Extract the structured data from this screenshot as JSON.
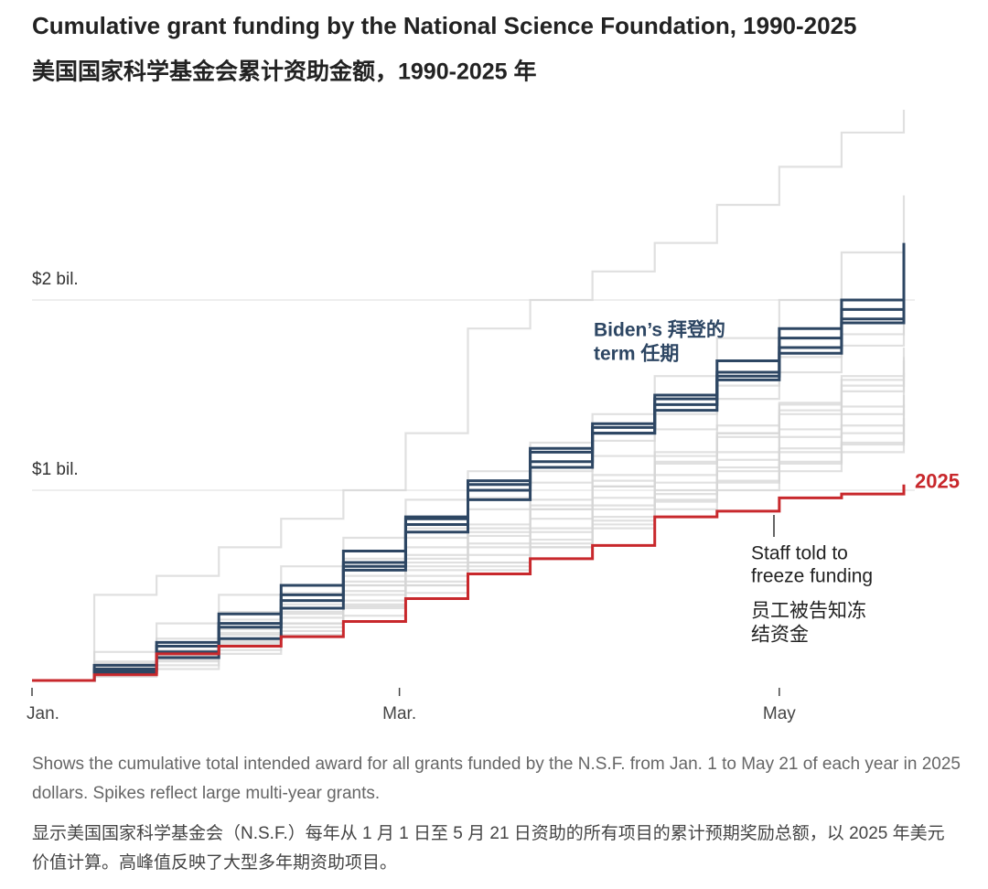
{
  "chart_data": {
    "type": "line",
    "title": "Cumulative grant funding by the National Science Foundation, 1990-2025",
    "subtitle": "美国国家科学基金会累计资助金额，1990-2025 年",
    "x": [
      0,
      10,
      20,
      30,
      40,
      50,
      60,
      70,
      80,
      90,
      100,
      110,
      120,
      130,
      140
    ],
    "xlim": [
      0,
      140
    ],
    "xticks": [
      {
        "value": 0,
        "label": "Jan."
      },
      {
        "value": 59,
        "label": "Mar."
      },
      {
        "value": 120,
        "label": "May"
      }
    ],
    "ylim": [
      0,
      3.0
    ],
    "yticks": [
      {
        "value": 1,
        "label": "$1 bil."
      },
      {
        "value": 2,
        "label": "$2 bil."
      }
    ],
    "grid": true,
    "series": [
      {
        "color": "#d6d6d6",
        "values": [
          0,
          0.05,
          0.12,
          0.22,
          0.3,
          0.4,
          0.52,
          0.62,
          0.72,
          0.84,
          0.95,
          1.05,
          1.15,
          1.25,
          1.38
        ]
      },
      {
        "color": "#d6d6d6",
        "values": [
          0,
          0.06,
          0.15,
          0.25,
          0.36,
          0.47,
          0.6,
          0.72,
          0.85,
          0.96,
          1.08,
          1.2,
          1.32,
          1.44,
          1.58
        ]
      },
      {
        "color": "#d6d6d6",
        "values": [
          0,
          0.04,
          0.1,
          0.2,
          0.33,
          0.45,
          0.58,
          0.7,
          0.8,
          0.92,
          1.04,
          1.16,
          1.28,
          1.4,
          1.5
        ]
      },
      {
        "color": "#d6d6d6",
        "values": [
          0,
          0.08,
          0.2,
          0.3,
          0.42,
          0.55,
          0.7,
          0.82,
          0.95,
          1.08,
          1.2,
          1.34,
          1.46,
          1.6,
          1.75
        ]
      },
      {
        "color": "#d6d6d6",
        "values": [
          0,
          0.03,
          0.08,
          0.16,
          0.26,
          0.38,
          0.5,
          0.6,
          0.7,
          0.8,
          0.9,
          1.0,
          1.1,
          1.2,
          1.3
        ]
      },
      {
        "color": "#d6d6d6",
        "values": [
          0,
          0.1,
          0.22,
          0.36,
          0.5,
          0.64,
          0.8,
          0.96,
          1.1,
          1.26,
          1.4,
          1.55,
          1.7,
          1.82,
          1.95
        ]
      },
      {
        "color": "#d6d6d6",
        "values": [
          0,
          0.05,
          0.14,
          0.24,
          0.35,
          0.5,
          0.62,
          0.76,
          0.9,
          1.02,
          1.15,
          1.3,
          1.42,
          1.55,
          1.68
        ]
      },
      {
        "color": "#d6d6d6",
        "values": [
          0,
          0.06,
          0.13,
          0.21,
          0.3,
          0.42,
          0.55,
          0.66,
          0.78,
          0.9,
          1.0,
          1.12,
          1.22,
          1.34,
          1.45
        ]
      },
      {
        "color": "#d6d6d6",
        "values": [
          0,
          0.07,
          0.18,
          0.28,
          0.4,
          0.52,
          0.66,
          0.8,
          0.92,
          1.05,
          1.18,
          1.3,
          1.45,
          1.58,
          1.7
        ]
      },
      {
        "color": "#d6d6d6",
        "values": [
          0,
          0.04,
          0.11,
          0.19,
          0.28,
          0.39,
          0.5,
          0.62,
          0.74,
          0.86,
          0.98,
          1.1,
          1.2,
          1.3,
          1.42
        ]
      },
      {
        "color": "#d6d6d6",
        "values": [
          0,
          0.02,
          0.06,
          0.14,
          0.24,
          0.34,
          0.46,
          0.58,
          0.7,
          0.82,
          0.94,
          1.04,
          1.14,
          1.24,
          1.35
        ]
      },
      {
        "color": "#d6d6d6",
        "values": [
          0,
          0.06,
          0.16,
          0.27,
          0.38,
          0.5,
          0.64,
          0.78,
          0.9,
          1.02,
          1.14,
          1.28,
          1.4,
          1.52,
          1.62
        ]
      },
      {
        "color": "#d6d6d6",
        "values": [
          0,
          0.45,
          0.55,
          0.7,
          0.85,
          1.0,
          1.3,
          1.85,
          2.0,
          2.15,
          2.3,
          2.5,
          2.7,
          2.88,
          3.0
        ]
      },
      {
        "color": "#d6d6d6",
        "values": [
          0,
          0.15,
          0.3,
          0.45,
          0.6,
          0.75,
          0.95,
          1.1,
          1.25,
          1.4,
          1.6,
          1.8,
          2.0,
          2.25,
          2.55
        ]
      },
      {
        "color": "#d6d6d6",
        "values": [
          0,
          0.09,
          0.2,
          0.32,
          0.46,
          0.6,
          0.75,
          0.9,
          1.04,
          1.18,
          1.32,
          1.48,
          1.62,
          1.76,
          1.88
        ]
      },
      {
        "color": "#2d4663",
        "values": [
          0,
          0.08,
          0.2,
          0.35,
          0.5,
          0.68,
          0.86,
          1.05,
          1.22,
          1.35,
          1.5,
          1.68,
          1.85,
          2.0,
          2.3
        ]
      },
      {
        "color": "#2d4663",
        "values": [
          0,
          0.06,
          0.18,
          0.3,
          0.42,
          0.6,
          0.82,
          1.0,
          1.15,
          1.3,
          1.48,
          1.62,
          1.8,
          1.95,
          2.2
        ]
      },
      {
        "color": "#2d4663",
        "values": [
          0,
          0.05,
          0.15,
          0.28,
          0.45,
          0.62,
          0.85,
          1.03,
          1.2,
          1.33,
          1.45,
          1.6,
          1.75,
          1.9,
          2.14
        ]
      },
      {
        "color": "#2d4663",
        "values": [
          0,
          0.04,
          0.12,
          0.22,
          0.38,
          0.58,
          0.78,
          0.95,
          1.12,
          1.3,
          1.42,
          1.58,
          1.72,
          1.88,
          2.08
        ]
      },
      {
        "name": "2025",
        "color": "#c8282c",
        "values": [
          0,
          0.03,
          0.14,
          0.18,
          0.23,
          0.31,
          0.43,
          0.56,
          0.64,
          0.71,
          0.86,
          0.89,
          0.96,
          0.98,
          1.03
        ]
      }
    ],
    "annotations": [
      {
        "lines": [
          "Biden’s  拜登的",
          "term  任期"
        ]
      },
      {
        "lines": [
          "Staff told to",
          "freeze funding"
        ]
      },
      {
        "lines": [
          "员工被告知冻",
          "结资金"
        ]
      }
    ],
    "notes": [
      "Shows the cumulative total intended award for all grants funded by the N.S.F. from Jan. 1 to May 21 of each year in 2025 dollars. Spikes reflect large multi-year grants.",
      "显示美国国家科学基金会（N.S.F.）每年从 1 月 1 日至 5 月 21 日资助的所有项目的累计预期奖励总额，以 2025 年美元价值计算。高峰值反映了大型多年期资助项目。"
    ]
  }
}
